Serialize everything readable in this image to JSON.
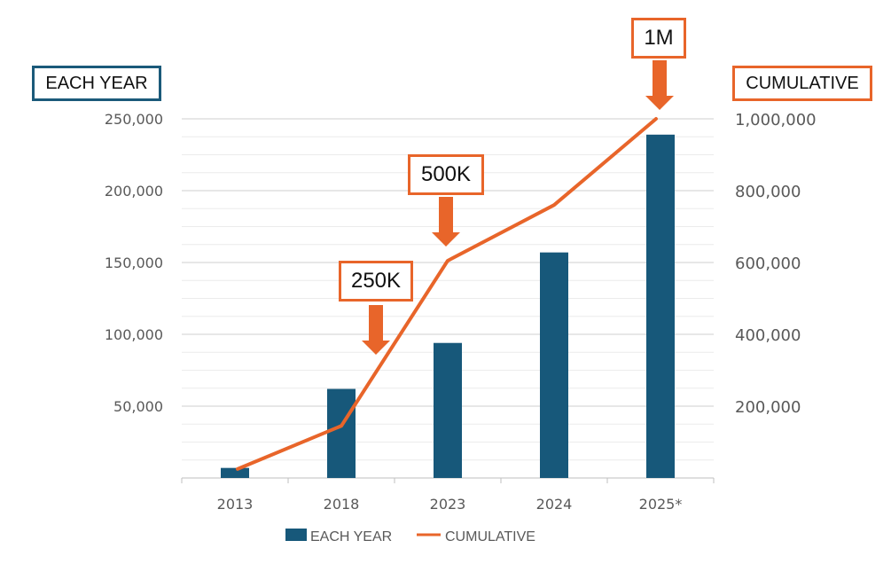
{
  "chart_data": {
    "type": "bar+line",
    "categories": [
      "2013",
      "2018",
      "2023",
      "2024",
      "2025*"
    ],
    "series": [
      {
        "name": "EACH YEAR",
        "type": "bar",
        "axis": "left",
        "color": "#17587a",
        "values": [
          7000,
          62000,
          94000,
          157000,
          239000
        ]
      },
      {
        "name": "CUMULATIVE",
        "type": "line",
        "axis": "right",
        "color": "#e8652a",
        "values": [
          25000,
          145000,
          605000,
          760000,
          1000000
        ]
      }
    ],
    "left_axis": {
      "label": "EACH YEAR",
      "ylim": [
        0,
        250000
      ],
      "ticks": [
        50000,
        100000,
        150000,
        200000,
        250000
      ],
      "tick_labels": [
        "50,000",
        "100,000",
        "150,000",
        "200,000",
        "250,000"
      ]
    },
    "right_axis": {
      "label": "CUMULATIVE",
      "ylim": [
        0,
        1000000
      ],
      "ticks": [
        200000,
        400000,
        600000,
        800000,
        1000000
      ],
      "tick_labels": [
        "200,000",
        "400,000",
        "600,000",
        "800,000",
        "1,000,000"
      ]
    },
    "annotations": [
      {
        "text": "250K",
        "category": "2018"
      },
      {
        "text": "500K",
        "category": "2023"
      },
      {
        "text": "1M",
        "category": "2025*"
      }
    ],
    "grid": true,
    "legend": "bottom",
    "accent_colors": {
      "bar": "#17587a",
      "line": "#e8652a"
    }
  }
}
